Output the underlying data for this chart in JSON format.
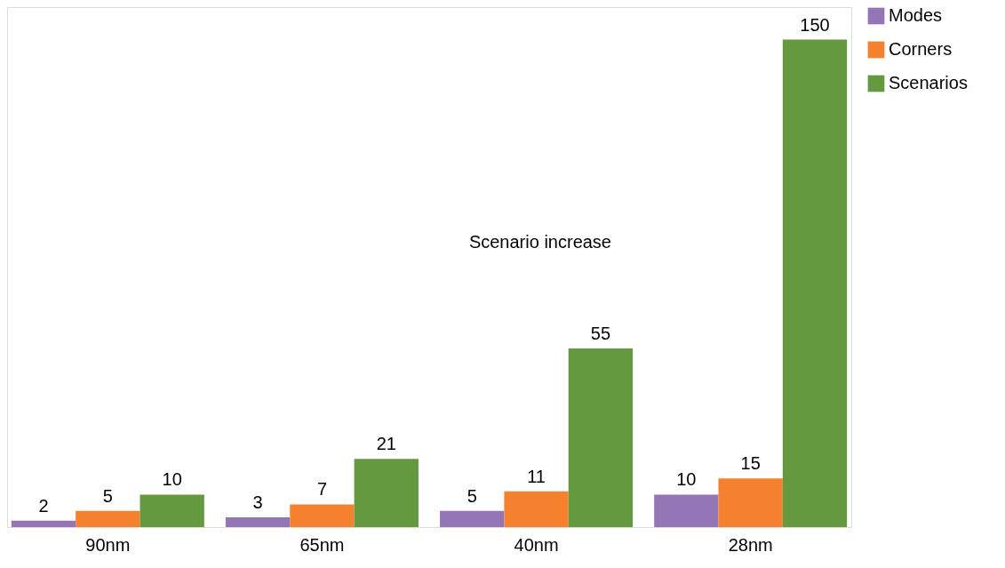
{
  "chart_data": {
    "type": "bar",
    "categories": [
      "90nm",
      "65nm",
      "40nm",
      "28nm"
    ],
    "series": [
      {
        "name": "Modes",
        "color": "#9475b5",
        "values": [
          2,
          3,
          5,
          10
        ]
      },
      {
        "name": "Corners",
        "color": "#f5812f",
        "values": [
          5,
          7,
          11,
          15
        ]
      },
      {
        "name": "Scenarios",
        "color": "#64993f",
        "values": [
          10,
          21,
          55,
          150
        ]
      }
    ],
    "data_labels": true,
    "legend": "top right",
    "grid": false,
    "annotations": [
      "Scenario increase"
    ]
  }
}
